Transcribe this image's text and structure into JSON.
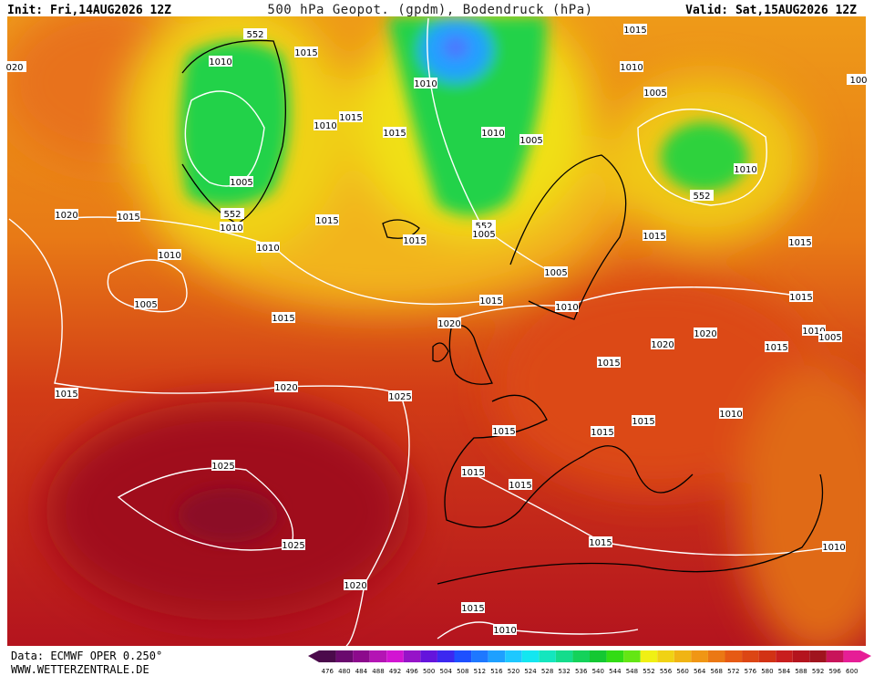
{
  "header": {
    "init": "Init: Fri,14AUG2026 12Z",
    "title": "500 hPa Geopot. (gpdm), Bodendruck (hPa)",
    "valid": "Valid: Sat,15AUG2026 12Z"
  },
  "isobar_labels": [
    "1015",
    "552",
    "1010",
    "1015",
    "1010",
    "020",
    "100",
    "1010",
    "1005",
    "1015",
    "1010",
    "1015",
    "1010",
    "1005",
    "1010",
    "1005",
    "552",
    "1020",
    "1015",
    "1010",
    "552",
    "1015",
    "552",
    "1005",
    "1010",
    "1015",
    "1015",
    "1015",
    "1010",
    "1005",
    "1005",
    "1015",
    "1010",
    "1015",
    "1015",
    "1020",
    "1010",
    "1020",
    "1005",
    "1020",
    "1015",
    "1015",
    "1015",
    "1020",
    "1025",
    "1015",
    "1010",
    "1015",
    "1015",
    "1025",
    "1015",
    "1015",
    "1015",
    "1025",
    "1010",
    "1020",
    "1015",
    "1010"
  ],
  "footer": {
    "source": "Data: ECMWF OPER 0.250°",
    "website": "WWW.WETTERZENTRALE.DE"
  },
  "color_scale": {
    "labels": [
      "476",
      "480",
      "484",
      "488",
      "492",
      "496",
      "500",
      "504",
      "508",
      "512",
      "516",
      "520",
      "524",
      "528",
      "532",
      "536",
      "540",
      "544",
      "548",
      "552",
      "556",
      "560",
      "564",
      "568",
      "572",
      "576",
      "580",
      "584",
      "588",
      "592",
      "596",
      "600"
    ]
  }
}
